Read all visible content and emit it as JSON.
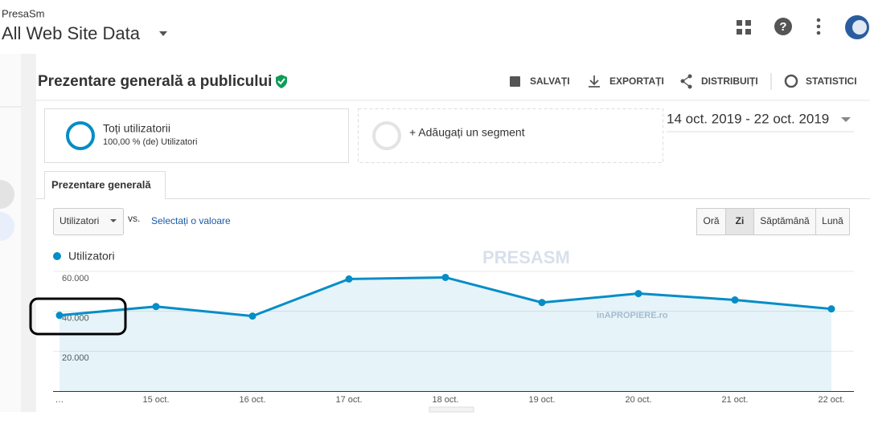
{
  "header": {
    "account": "PresaSm",
    "property": "All Web Site Data"
  },
  "toolbar": {
    "title": "Prezentare generală a publicului",
    "actions": [
      "SALVAȚI",
      "EXPORTAȚI",
      "DISTRIBUIȚI",
      "STATISTICI"
    ]
  },
  "segments": {
    "active": {
      "name": "Toți utilizatorii",
      "detail": "100,00 % (de) Utilizatori"
    },
    "add": "+ Adăugați un segment"
  },
  "date_range": "14 oct. 2019 - 22 oct. 2019",
  "tab": "Prezentare generală",
  "controls": {
    "metric": "Utilizatori",
    "vs": "vs.",
    "compare": "Selectați o valoare",
    "intervals": [
      "Oră",
      "Zi",
      "Săptămână",
      "Lună"
    ],
    "active_interval": 1
  },
  "chart_data": {
    "type": "area",
    "categories": [
      "…",
      "15 oct.",
      "16 oct.",
      "17 oct.",
      "18 oct.",
      "19 oct.",
      "20 oct.",
      "21 oct.",
      "22 oct."
    ],
    "series": [
      {
        "name": "Utilizatori",
        "color": "#058dc7",
        "values": [
          38000,
          42400,
          37600,
          56200,
          57000,
          44400,
          48900,
          45700,
          41200
        ]
      }
    ],
    "ylim": [
      0,
      60000
    ],
    "yticks": [
      {
        "value": 20000,
        "label": "20.000"
      },
      {
        "value": 40000,
        "label": "40.000"
      },
      {
        "value": 60000,
        "label": "60.000"
      }
    ],
    "grid": true
  },
  "watermark": [
    "PRESASM",
    "inAPROPIERE.ro"
  ]
}
